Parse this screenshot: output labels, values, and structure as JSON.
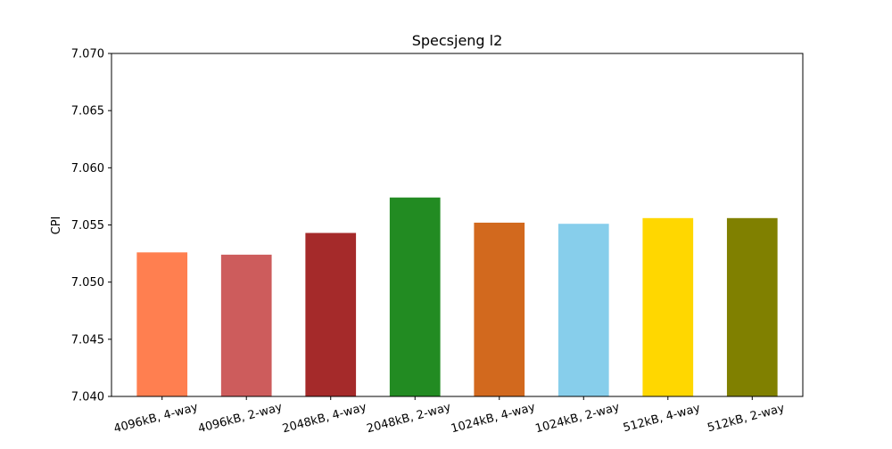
{
  "chart_data": {
    "type": "bar",
    "title": "Specsjeng l2",
    "xlabel": "",
    "ylabel": "CPI",
    "ylim": [
      7.04,
      7.07
    ],
    "yticks": [
      "7.040",
      "7.045",
      "7.050",
      "7.055",
      "7.060",
      "7.065",
      "7.070"
    ],
    "grid": false,
    "categories": [
      "4096kB, 4-way",
      "4096kB, 2-way",
      "2048kB, 4-way",
      "2048kB, 2-way",
      "1024kB, 4-way",
      "1024kB, 2-way",
      "512kB, 4-way",
      "512kB, 2-way"
    ],
    "values": [
      7.0526,
      7.0524,
      7.0543,
      7.0574,
      7.0552,
      7.0551,
      7.0556,
      7.0556
    ],
    "colors": [
      "#ff7f50",
      "#cd5c5c",
      "#a52a2a",
      "#228b22",
      "#d2691e",
      "#87ceeb",
      "#ffd700",
      "#808000"
    ]
  }
}
